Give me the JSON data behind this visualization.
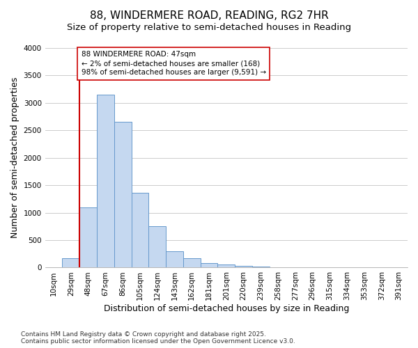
{
  "title": "88, WINDERMERE ROAD, READING, RG2 7HR",
  "subtitle": "Size of property relative to semi-detached houses in Reading",
  "xlabel": "Distribution of semi-detached houses by size in Reading",
  "ylabel": "Number of semi-detached properties",
  "categories": [
    "10sqm",
    "29sqm",
    "48sqm",
    "67sqm",
    "86sqm",
    "105sqm",
    "124sqm",
    "143sqm",
    "162sqm",
    "181sqm",
    "201sqm",
    "220sqm",
    "239sqm",
    "258sqm",
    "277sqm",
    "296sqm",
    "315sqm",
    "334sqm",
    "353sqm",
    "372sqm",
    "391sqm"
  ],
  "bar_heights": [
    10,
    168,
    1100,
    3150,
    2660,
    1360,
    750,
    300,
    175,
    80,
    55,
    35,
    20,
    10,
    5,
    3,
    2,
    1,
    0,
    0,
    0
  ],
  "bar_color": "#c5d8f0",
  "bar_edge_color": "#6699cc",
  "vline_color": "#cc0000",
  "annotation_text": "88 WINDERMERE ROAD: 47sqm\n← 2% of semi-detached houses are smaller (168)\n98% of semi-detached houses are larger (9,591) →",
  "annotation_box_color": "#ffffff",
  "annotation_box_edge": "#cc0000",
  "ylim": [
    0,
    4000
  ],
  "yticks": [
    0,
    500,
    1000,
    1500,
    2000,
    2500,
    3000,
    3500,
    4000
  ],
  "footnote": "Contains HM Land Registry data © Crown copyright and database right 2025.\nContains public sector information licensed under the Open Government Licence v3.0.",
  "bg_color": "#ffffff",
  "plot_bg_color": "#ffffff",
  "grid_color": "#cccccc",
  "title_fontsize": 11,
  "subtitle_fontsize": 9.5,
  "axis_label_fontsize": 9,
  "tick_fontsize": 7.5,
  "footnote_fontsize": 6.5
}
